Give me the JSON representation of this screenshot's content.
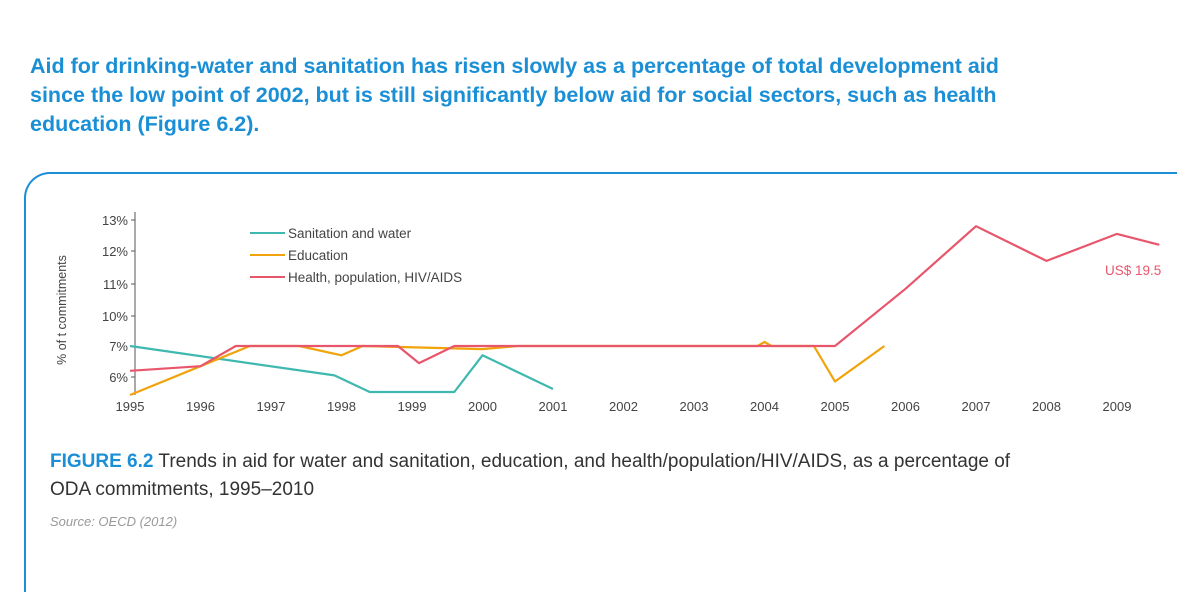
{
  "heading": {
    "lines": [
      "Aid for drinking-water and sanitation has risen slowly as a percentage of total development aid",
      "since the low point of 2002, but is still significantly below aid for social sectors, such as health",
      "education (Figure 6.2)."
    ]
  },
  "caption": {
    "figure_label": "FIGURE 6.2",
    "text_line1": " Trends in aid for water and sanitation, education, and health/population/HIV/AIDS, as a percentage of",
    "text_line2": "ODA commitments, 1995–2010"
  },
  "source": "Source: OECD (2012)",
  "chart_data": {
    "type": "line",
    "ylabel": "% of t commitments",
    "y_tick_labels": [
      "6%",
      "7%",
      "10%",
      "11%",
      "12%",
      "13%"
    ],
    "y_tick_values": [
      6,
      7,
      10,
      11,
      12,
      13
    ],
    "ylim": [
      5.4,
      13.2
    ],
    "x": [
      1995,
      1996,
      1997,
      1998,
      1999,
      2000,
      2001,
      2002,
      2003,
      2004,
      2005,
      2006,
      2007,
      2008,
      2009
    ],
    "x_tick_labels": [
      "1995",
      "1996",
      "1997",
      "1998",
      "1999",
      "2000",
      "2001",
      "2002",
      "2003",
      "2004",
      "2005",
      "2006",
      "2007",
      "2008",
      "2009"
    ],
    "grid": false,
    "legend_position": "top-left",
    "annotation": "US$ 19.5",
    "series": [
      {
        "name": "Sanitation and water",
        "color": "#3fb8b0",
        "points": [
          [
            1995,
            7.0
          ],
          [
            1997.9,
            6.05
          ],
          [
            1998.4,
            5.5
          ],
          [
            1999.6,
            5.5
          ],
          [
            2000,
            6.7
          ],
          [
            2001,
            5.6
          ]
        ]
      },
      {
        "name": "Education",
        "color": "#f0a30a",
        "points": [
          [
            1995,
            5.4
          ],
          [
            1996,
            6.35
          ],
          [
            1996.7,
            7.0
          ],
          [
            1997.4,
            7.0
          ],
          [
            1998,
            6.7
          ],
          [
            1998.3,
            7.0
          ],
          [
            2000,
            6.9
          ],
          [
            2000.5,
            7.0
          ],
          [
            2003.9,
            7.0
          ],
          [
            2004,
            7.4
          ],
          [
            2004.1,
            7.0
          ],
          [
            2004.7,
            7.0
          ],
          [
            2005,
            5.85
          ],
          [
            2005.7,
            7.0
          ]
        ]
      },
      {
        "name": "Health, population, HIV/AIDS",
        "color": "#e8566c",
        "points": [
          [
            1995,
            6.2
          ],
          [
            1996,
            6.35
          ],
          [
            1996.5,
            7.0
          ],
          [
            1998.8,
            7.0
          ],
          [
            1999.1,
            6.45
          ],
          [
            1999.6,
            7.0
          ],
          [
            2005,
            7.0
          ],
          [
            2006,
            10.85
          ],
          [
            2007,
            12.8
          ],
          [
            2008,
            11.7
          ],
          [
            2009,
            12.55
          ],
          [
            2009.6,
            12.2
          ]
        ]
      }
    ]
  }
}
